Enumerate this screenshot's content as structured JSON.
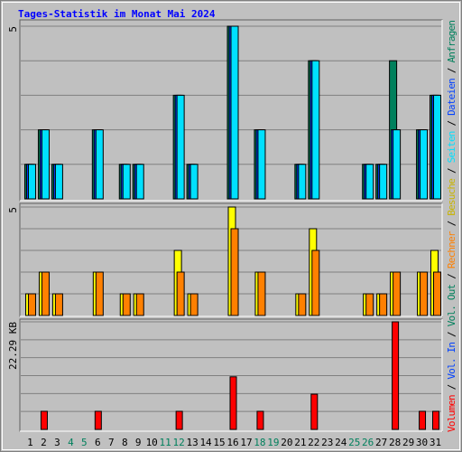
{
  "chart_data": [
    {
      "type": "bar",
      "title": "Tages-Statistik im Monat Mai 2024",
      "title_color": "#0000ff",
      "ylim": [
        0,
        5
      ],
      "yticks": [
        5
      ],
      "series": [
        {
          "name": "Anfragen",
          "color": "#00805c",
          "values": [
            1,
            2,
            1,
            0,
            0,
            2,
            0,
            1,
            1,
            0,
            0,
            3,
            1,
            0,
            0,
            5,
            0,
            2,
            0,
            0,
            1,
            4,
            0,
            0,
            0,
            1,
            1,
            4,
            0,
            2,
            3
          ]
        },
        {
          "name": "Dateien",
          "color": "#0040ff",
          "values": [
            1,
            2,
            1,
            0,
            0,
            2,
            0,
            1,
            1,
            0,
            0,
            3,
            1,
            0,
            0,
            5,
            0,
            2,
            0,
            0,
            1,
            4,
            0,
            0,
            0,
            1,
            1,
            2,
            0,
            2,
            3
          ]
        },
        {
          "name": "Seiten",
          "color": "#00e0ff",
          "values": [
            1,
            2,
            1,
            0,
            0,
            2,
            0,
            1,
            1,
            0,
            0,
            3,
            1,
            0,
            0,
            5,
            0,
            2,
            0,
            0,
            1,
            4,
            0,
            0,
            0,
            1,
            1,
            2,
            0,
            2,
            3
          ]
        }
      ]
    },
    {
      "type": "bar",
      "ylim": [
        0,
        5
      ],
      "yticks": [
        5
      ],
      "series": [
        {
          "name": "Besuche",
          "color": "#ffff00",
          "values": [
            1,
            2,
            1,
            0,
            0,
            2,
            0,
            1,
            1,
            0,
            0,
            3,
            1,
            0,
            0,
            5,
            0,
            2,
            0,
            0,
            1,
            4,
            0,
            0,
            0,
            1,
            1,
            2,
            0,
            2,
            3
          ]
        },
        {
          "name": "Rechner",
          "color": "#ff8000",
          "values": [
            1,
            2,
            1,
            0,
            0,
            2,
            0,
            1,
            1,
            0,
            0,
            2,
            1,
            0,
            0,
            4,
            0,
            2,
            0,
            0,
            1,
            3,
            0,
            0,
            0,
            1,
            1,
            2,
            0,
            2,
            2
          ]
        }
      ]
    },
    {
      "type": "bar",
      "ylim": [
        0,
        22.29
      ],
      "yticks": [
        {
          "value": 22.29,
          "label": "22.29 KB"
        }
      ],
      "categories": [
        "1",
        "2",
        "3",
        "4",
        "5",
        "6",
        "7",
        "8",
        "9",
        "10",
        "11",
        "12",
        "13",
        "14",
        "15",
        "16",
        "17",
        "18",
        "19",
        "20",
        "21",
        "22",
        "23",
        "24",
        "25",
        "26",
        "27",
        "28",
        "29",
        "30",
        "31"
      ],
      "category_colors": [
        "#000000",
        "#000000",
        "#000000",
        "#00805c",
        "#00805c",
        "#000000",
        "#000000",
        "#000000",
        "#000000",
        "#000000",
        "#00805c",
        "#00805c",
        "#000000",
        "#000000",
        "#000000",
        "#000000",
        "#000000",
        "#00805c",
        "#00805c",
        "#000000",
        "#000000",
        "#000000",
        "#000000",
        "#000000",
        "#00805c",
        "#00805c",
        "#000000",
        "#000000",
        "#000000",
        "#000000",
        "#000000"
      ],
      "series": [
        {
          "name": "Volumen",
          "color": "#ff0000",
          "values": [
            0,
            3.75,
            0,
            0,
            0,
            3.75,
            0,
            0,
            0,
            0,
            0,
            3.75,
            0,
            0,
            0,
            10.9,
            0,
            3.75,
            0,
            0,
            0,
            7.3,
            0,
            0,
            0,
            0,
            0,
            22.29,
            0,
            3.75,
            3.75
          ]
        },
        {
          "name": "Vol. In",
          "color": "#0040ff",
          "values": [
            0,
            0,
            0,
            0,
            0,
            0,
            0,
            0,
            0,
            0,
            0,
            0,
            0,
            0,
            0,
            0,
            0,
            0,
            0,
            0,
            0,
            0,
            0,
            0,
            0,
            0,
            0,
            0,
            0,
            0,
            0
          ]
        },
        {
          "name": "Vol. Out",
          "color": "#00805c",
          "values": [
            0,
            0,
            0,
            0,
            0,
            0,
            0,
            0,
            0,
            0,
            0,
            0,
            0,
            0,
            0,
            0,
            0,
            0,
            0,
            0,
            0,
            0,
            0,
            0,
            0,
            0,
            0,
            0,
            0,
            0,
            0
          ]
        }
      ]
    }
  ],
  "legend_separator": "/"
}
